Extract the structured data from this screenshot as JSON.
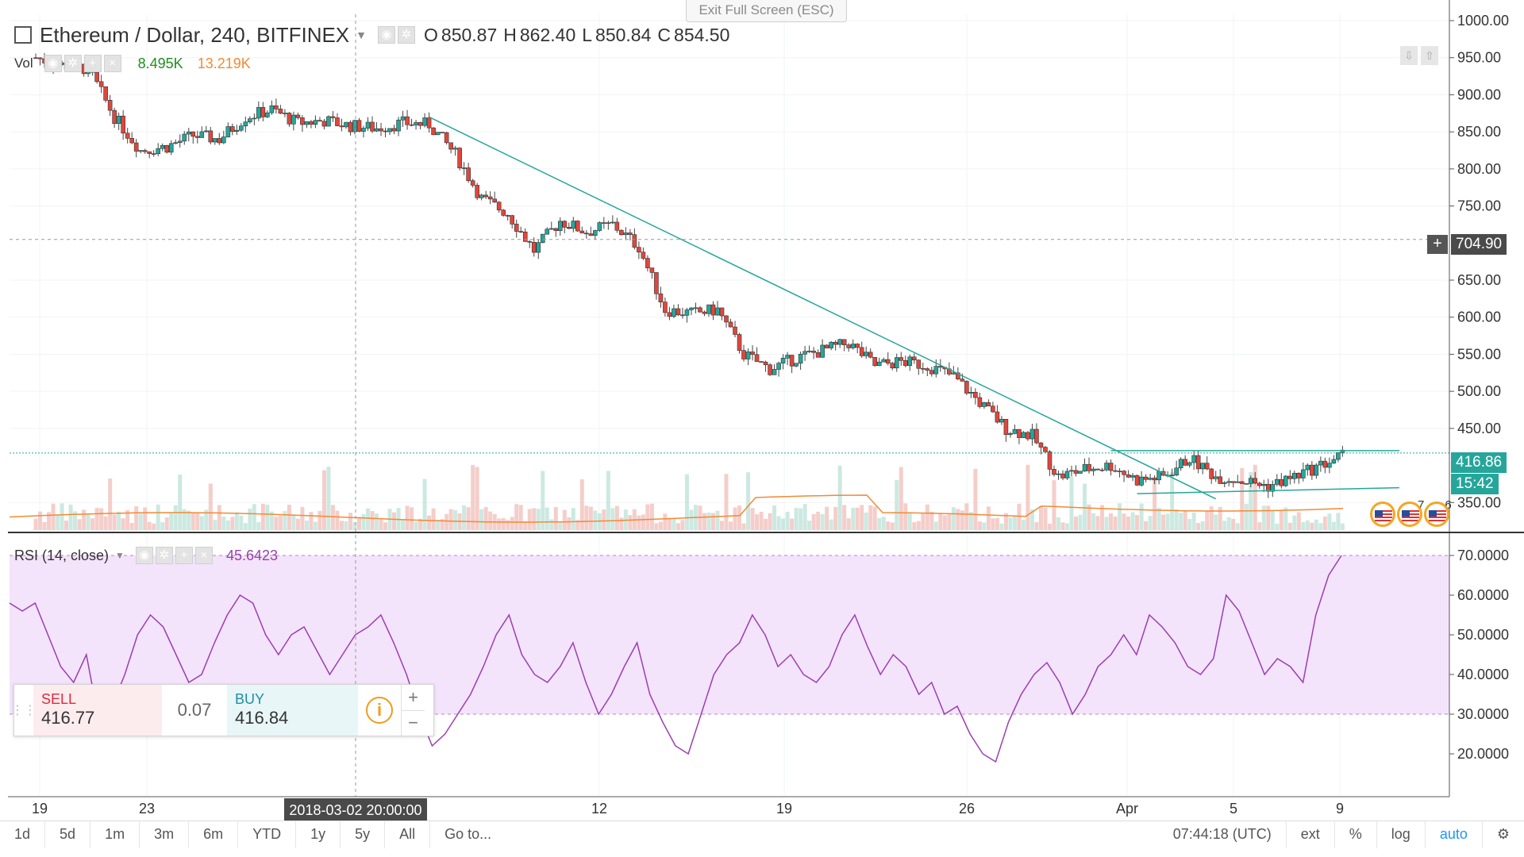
{
  "window": {
    "exit_fullscreen": "Exit Full Screen (ESC)"
  },
  "symbol": {
    "title": "Ethereum / Dollar, 240, BITFINEX",
    "open_label": "O",
    "open": "850.87",
    "high_label": "H",
    "high": "862.40",
    "low_label": "L",
    "low": "850.84",
    "close_label": "C",
    "close": "854.50"
  },
  "volume_legend": {
    "name": "Vol",
    "value": "8.495K",
    "ma_value": "13.219K",
    "value_color": "#1e8f1e",
    "ma_color": "#f28a33"
  },
  "rsi_legend": {
    "name": "RSI (14, close)",
    "value": "45.6423",
    "color": "#9b3fb0"
  },
  "trade_panel": {
    "sell_label": "SELL",
    "sell_price": "416.77",
    "spread": "0.07",
    "buy_label": "BUY",
    "buy_price": "416.84",
    "info_icon": "info-icon"
  },
  "price_tags": {
    "crosshair_price": "704.90",
    "last_price": "416.86",
    "countdown": "15:42",
    "last_color": "#26a69a",
    "crosshair_color": "#4a4a4a"
  },
  "crosshair_time": "2018-03-02 20:00:00",
  "events": {
    "count_a": "7",
    "count_b": "6"
  },
  "bottom_bar": {
    "ranges": [
      "1d",
      "5d",
      "1m",
      "3m",
      "6m",
      "YTD",
      "1y",
      "5y",
      "All"
    ],
    "goto": "Go to...",
    "clock": "07:44:18 (UTC)",
    "ext": "ext",
    "percent": "%",
    "log": "log",
    "auto": "auto",
    "settings_icon": "gear-icon"
  },
  "chart_data": [
    {
      "type": "candlestick",
      "title": "Ethereum / Dollar, 240, BITFINEX",
      "price_axis_ticks": [
        "1000.00",
        "950.00",
        "900.00",
        "850.00",
        "800.00",
        "750.00",
        "650.00",
        "600.00",
        "550.00",
        "500.00",
        "450.00",
        "350.00"
      ],
      "ylim": [
        330,
        1000
      ],
      "time_axis_ticks": [
        "19",
        "23",
        "12",
        "19",
        "26",
        "Apr",
        "5",
        "9"
      ],
      "series_price": [
        {
          "date": "2018-02-18",
          "close": 950
        },
        {
          "date": "2018-02-19",
          "close": 940
        },
        {
          "date": "2018-02-20",
          "close": 935
        },
        {
          "date": "2018-02-21",
          "close": 870
        },
        {
          "date": "2018-02-22",
          "close": 825
        },
        {
          "date": "2018-02-23",
          "close": 830
        },
        {
          "date": "2018-02-24",
          "close": 845
        },
        {
          "date": "2018-02-25",
          "close": 840
        },
        {
          "date": "2018-02-26",
          "close": 870
        },
        {
          "date": "2018-02-27",
          "close": 880
        },
        {
          "date": "2018-02-28",
          "close": 862
        },
        {
          "date": "2018-03-01",
          "close": 865
        },
        {
          "date": "2018-03-02",
          "close": 858
        },
        {
          "date": "2018-03-03",
          "close": 855
        },
        {
          "date": "2018-03-04",
          "close": 862
        },
        {
          "date": "2018-03-05",
          "close": 860
        },
        {
          "date": "2018-03-06",
          "close": 820
        },
        {
          "date": "2018-03-07",
          "close": 760
        },
        {
          "date": "2018-03-08",
          "close": 740
        },
        {
          "date": "2018-03-09",
          "close": 690
        },
        {
          "date": "2018-03-10",
          "close": 730
        },
        {
          "date": "2018-03-11",
          "close": 715
        },
        {
          "date": "2018-03-12",
          "close": 725
        },
        {
          "date": "2018-03-13",
          "close": 695
        },
        {
          "date": "2018-03-14",
          "close": 610
        },
        {
          "date": "2018-03-15",
          "close": 605
        },
        {
          "date": "2018-03-16",
          "close": 610
        },
        {
          "date": "2018-03-17",
          "close": 550
        },
        {
          "date": "2018-03-18",
          "close": 530
        },
        {
          "date": "2018-03-19",
          "close": 545
        },
        {
          "date": "2018-03-20",
          "close": 555
        },
        {
          "date": "2018-03-21",
          "close": 565
        },
        {
          "date": "2018-03-22",
          "close": 535
        },
        {
          "date": "2018-03-23",
          "close": 540
        },
        {
          "date": "2018-03-24",
          "close": 535
        },
        {
          "date": "2018-03-25",
          "close": 520
        },
        {
          "date": "2018-03-26",
          "close": 485
        },
        {
          "date": "2018-03-27",
          "close": 450
        },
        {
          "date": "2018-03-28",
          "close": 440
        },
        {
          "date": "2018-03-29",
          "close": 385
        },
        {
          "date": "2018-03-30",
          "close": 395
        },
        {
          "date": "2018-03-31",
          "close": 400
        },
        {
          "date": "2018-04-01",
          "close": 380
        },
        {
          "date": "2018-04-02",
          "close": 385
        },
        {
          "date": "2018-04-03",
          "close": 410
        },
        {
          "date": "2018-04-04",
          "close": 385
        },
        {
          "date": "2018-04-05",
          "close": 380
        },
        {
          "date": "2018-04-06",
          "close": 372
        },
        {
          "date": "2018-04-07",
          "close": 385
        },
        {
          "date": "2018-04-08",
          "close": 400
        },
        {
          "date": "2018-04-09",
          "close": 416.86
        }
      ],
      "trendline_descending": [
        {
          "date": "2018-03-05",
          "price": 870
        },
        {
          "date": "2018-04-04",
          "price": 355
        }
      ],
      "resistance_line": {
        "price": 420,
        "from": "2018-03-31",
        "to": "2018-04-11"
      },
      "support_line": [
        {
          "date": "2018-04-01",
          "price": 362
        },
        {
          "date": "2018-04-11",
          "price": 370
        }
      ],
      "crosshair": {
        "date": "2018-03-02 20:00:00",
        "price": 704.9
      },
      "last_price": 416.86,
      "up_color": "#26a69a",
      "down_color": "#e0463d",
      "grid": true
    },
    {
      "type": "line",
      "title": "RSI (14, close)",
      "ticks": [
        "70.0000",
        "60.0000",
        "50.0000",
        "40.0000",
        "30.0000",
        "20.0000"
      ],
      "ylim": [
        12,
        72
      ],
      "band": [
        30,
        70
      ],
      "values": [
        58,
        56,
        58,
        50,
        42,
        38,
        45,
        28,
        32,
        40,
        50,
        55,
        52,
        45,
        38,
        40,
        48,
        55,
        60,
        58,
        50,
        45,
        50,
        52,
        46,
        40,
        45,
        50,
        52,
        55,
        48,
        40,
        30,
        22,
        25,
        30,
        35,
        42,
        50,
        55,
        45,
        40,
        38,
        42,
        48,
        38,
        30,
        35,
        42,
        48,
        35,
        28,
        22,
        20,
        30,
        40,
        45,
        48,
        55,
        50,
        42,
        45,
        40,
        38,
        42,
        50,
        55,
        47,
        40,
        45,
        42,
        35,
        38,
        30,
        32,
        25,
        20,
        18,
        28,
        35,
        40,
        43,
        38,
        30,
        35,
        42,
        45,
        50,
        45,
        55,
        52,
        48,
        42,
        40,
        44,
        60,
        56,
        48,
        40,
        44,
        42,
        38,
        55,
        65,
        70
      ],
      "current": 45.6423,
      "line_color": "#9b3fb0",
      "band_color": "#f3e3fb"
    },
    {
      "type": "bar",
      "title": "Vol",
      "value": "8.495K",
      "ma_value": "13.219K"
    }
  ]
}
